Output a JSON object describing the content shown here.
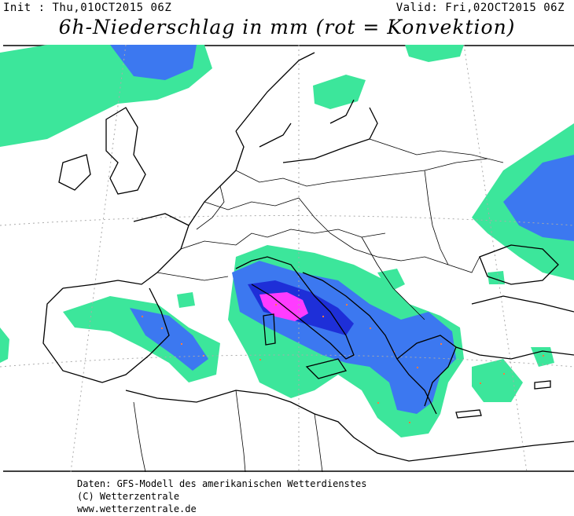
{
  "header": {
    "init": "Init : Thu,01OCT2015 06Z",
    "valid": "Valid: Fri,02OCT2015 06Z",
    "title": "6h-Niederschlag in mm (rot = Konvektion)"
  },
  "footer": {
    "line1": "Daten: GFS-Modell des amerikanischen Wetterdienstes",
    "line2": "(C) Wetterzentrale",
    "line3": "www.wetterzentrale.de"
  },
  "colors": {
    "precip_light": "#3ce69b",
    "precip_moderate": "#3c78f0",
    "precip_heavy": "#1e2fd8",
    "precip_extreme": "#ff3cff",
    "convection": "#ff7a3c",
    "borders": "#000000",
    "grid": "#aaaaaa"
  }
}
